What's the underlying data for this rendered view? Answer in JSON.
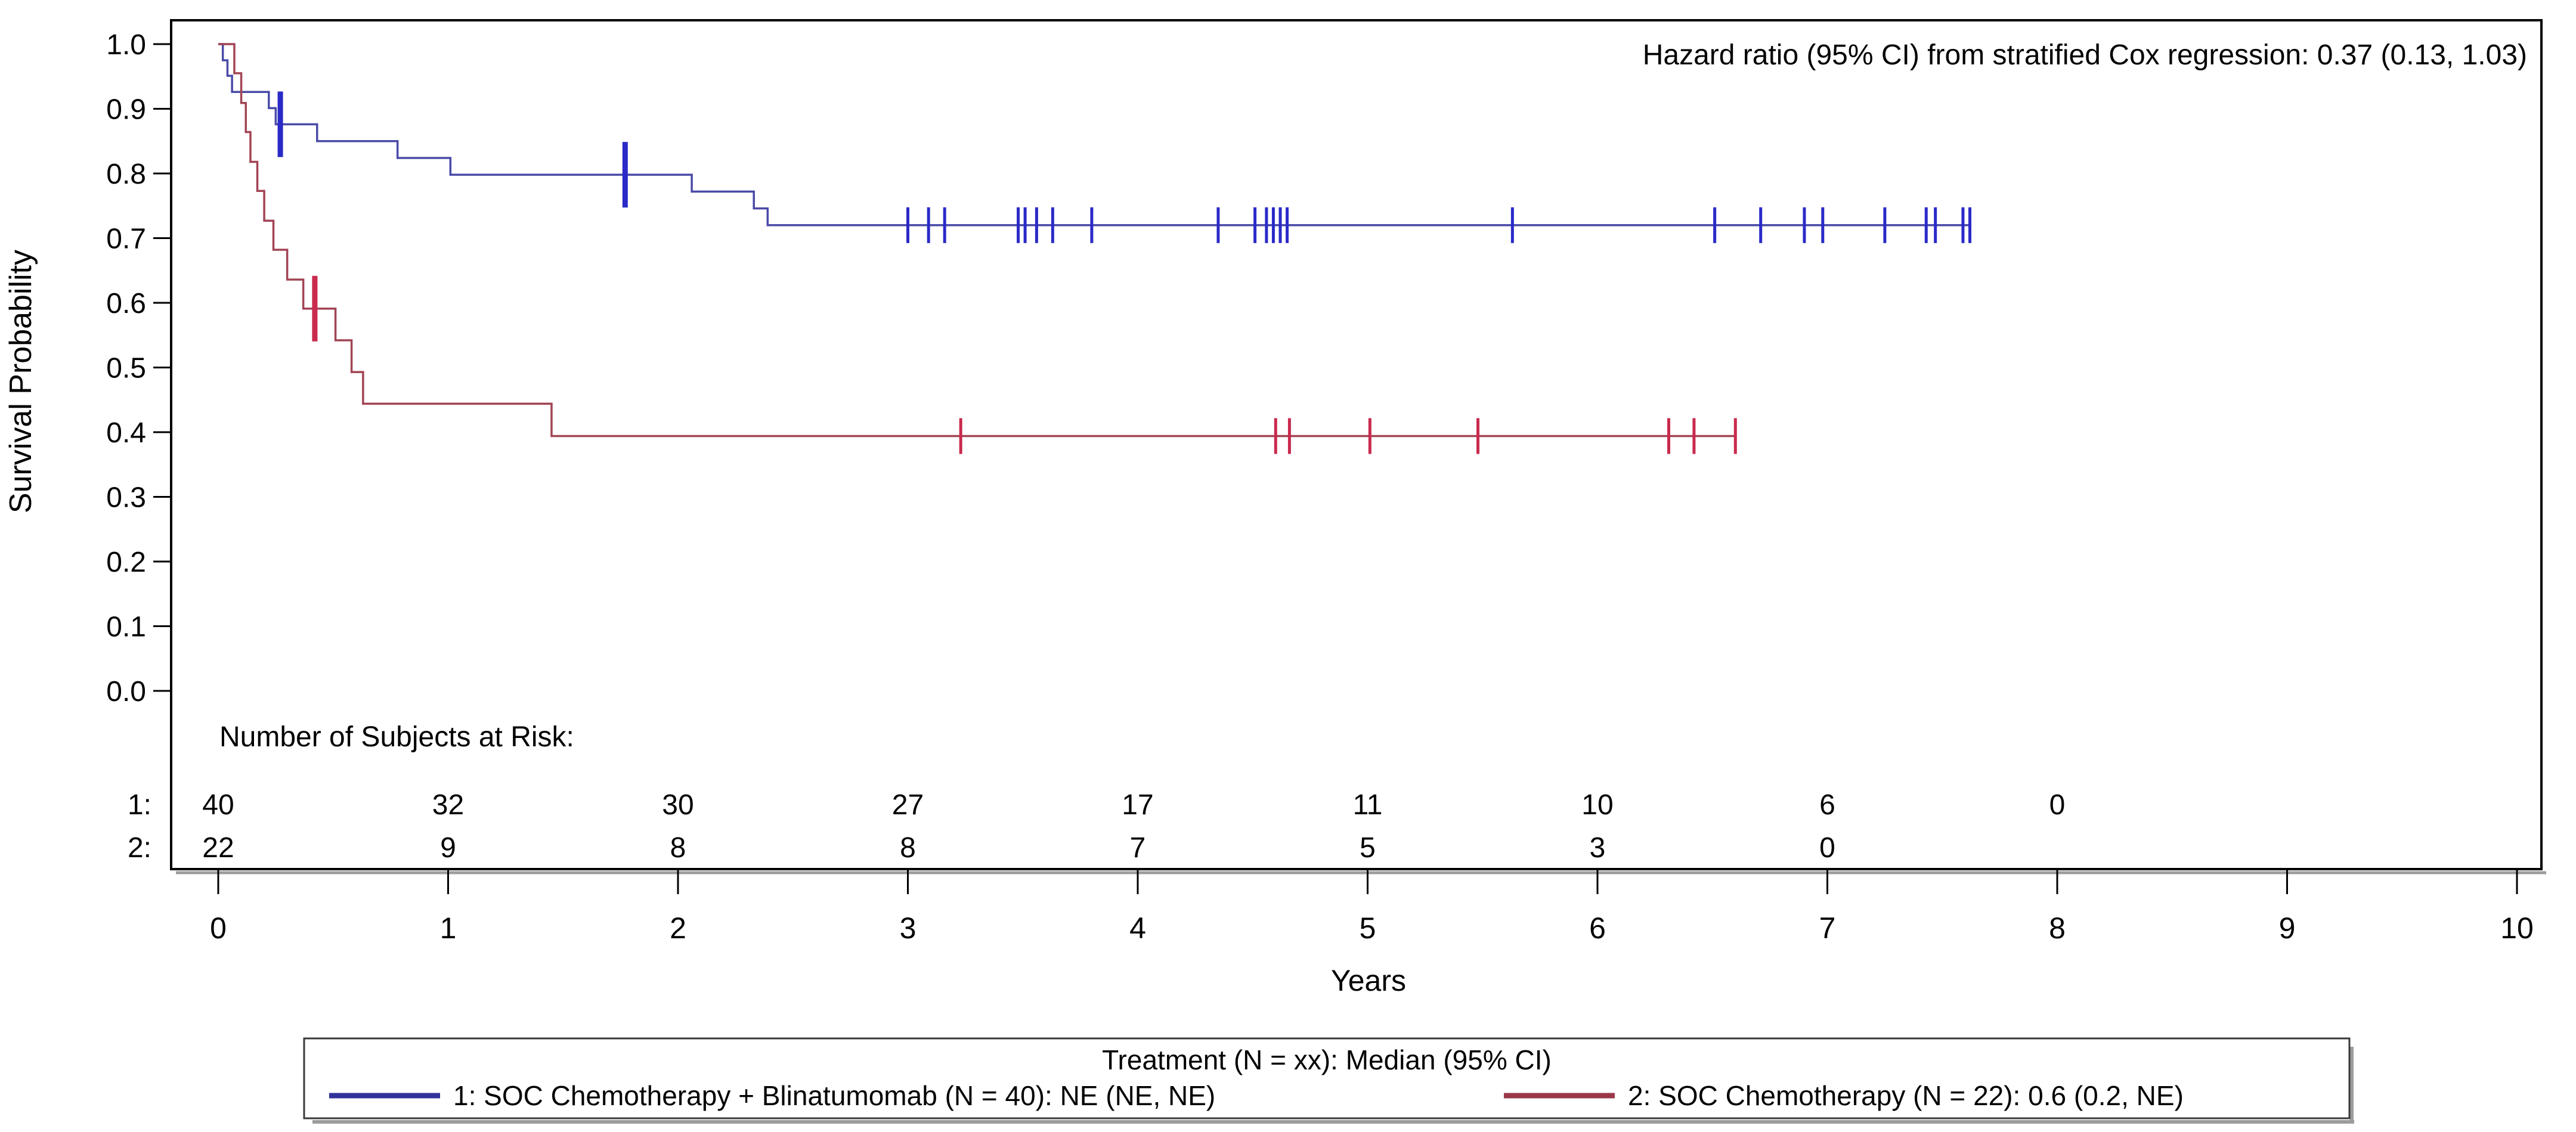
{
  "annotation": {
    "hazard_note": "Hazard ratio (95% CI) from stratified Cox regression: 0.37 (0.13, 1.03)"
  },
  "axes": {
    "y_label": "Survival Probability",
    "x_label": "Years",
    "y_tick_labels": [
      "1.0",
      "0.9",
      "0.8",
      "0.7",
      "0.6",
      "0.5",
      "0.4",
      "0.3",
      "0.2",
      "0.1",
      "0.0"
    ],
    "x_tick_labels": [
      "0",
      "1",
      "2",
      "3",
      "4",
      "5",
      "6",
      "7",
      "8",
      "9",
      "10"
    ]
  },
  "risk_table": {
    "header": "Number of Subjects at Risk:",
    "rows": [
      {
        "label": "1:",
        "color": "#2626d2",
        "counts": [
          "40",
          "32",
          "30",
          "27",
          "17",
          "11",
          "10",
          "6",
          "0"
        ]
      },
      {
        "label": "2:",
        "color": "#c1202f",
        "counts": [
          "22",
          "9",
          "8",
          "8",
          "7",
          "5",
          "3",
          "0"
        ]
      }
    ]
  },
  "legend": {
    "title": "Treatment (N = xx): Median (95% CI)",
    "entries": [
      {
        "label": "1: SOC Chemotherapy + Blinatumomab (N = 40): NE (NE, NE)",
        "color": "#32329b"
      },
      {
        "label": "2: SOC Chemotherapy (N = 22): 0.6 (0.2, NE)",
        "color": "#9a3848"
      }
    ]
  },
  "chart_data": {
    "type": "line",
    "subtype": "kaplan-meier-step",
    "title": "",
    "xlabel": "Years",
    "ylabel": "Survival Probability",
    "xlim": [
      0,
      10
    ],
    "ylim": [
      0.0,
      1.0
    ],
    "grid": false,
    "legend_position": "bottom",
    "annotation": "Hazard ratio (95% CI) from stratified Cox regression: 0.37 (0.13, 1.03)",
    "series": [
      {
        "name": "1: SOC Chemotherapy + Blinatumomab (N = 40)",
        "median_95ci": "NE (NE, NE)",
        "color": "#4a4aa8",
        "censor_color": "#2a2ac8",
        "steps": [
          [
            0,
            1.0
          ],
          [
            0.02,
            0.975
          ],
          [
            0.04,
            0.951
          ],
          [
            0.06,
            0.926
          ],
          [
            0.22,
            0.901
          ],
          [
            0.25,
            0.876
          ],
          [
            0.43,
            0.85
          ],
          [
            0.78,
            0.824
          ],
          [
            1.01,
            0.798
          ],
          [
            2.06,
            0.772
          ],
          [
            2.33,
            0.746
          ],
          [
            2.39,
            0.72
          ]
        ],
        "end_time": 7.62,
        "censor_times": [
          3.0,
          3.09,
          3.16,
          3.48,
          3.51,
          3.56,
          3.63,
          3.8,
          4.35,
          4.51,
          4.56,
          4.59,
          4.62,
          4.65,
          5.63,
          6.51,
          6.71,
          6.9,
          6.98,
          7.25,
          7.43,
          7.47,
          7.59,
          7.62
        ],
        "big_censor_times": [
          0.27,
          1.77
        ],
        "at_risk_by_year": [
          40,
          32,
          30,
          27,
          17,
          11,
          10,
          6,
          0
        ]
      },
      {
        "name": "2: SOC Chemotherapy (N = 22)",
        "median_95ci": "0.6 (0.2, NE)",
        "color": "#a24454",
        "censor_color": "#c92a4d",
        "steps": [
          [
            0,
            1.0
          ],
          [
            0.07,
            0.955
          ],
          [
            0.1,
            0.909
          ],
          [
            0.12,
            0.864
          ],
          [
            0.14,
            0.818
          ],
          [
            0.17,
            0.773
          ],
          [
            0.2,
            0.727
          ],
          [
            0.24,
            0.682
          ],
          [
            0.3,
            0.636
          ],
          [
            0.37,
            0.591
          ],
          [
            0.51,
            0.542
          ],
          [
            0.58,
            0.493
          ],
          [
            0.63,
            0.444
          ],
          [
            1.45,
            0.394
          ]
        ],
        "end_time": 6.6,
        "censor_times": [
          3.23,
          4.6,
          4.66,
          5.01,
          5.48,
          6.31,
          6.42,
          6.6
        ],
        "big_censor_times": [
          0.42
        ],
        "at_risk_by_year": [
          22,
          9,
          8,
          8,
          7,
          5,
          3,
          0
        ]
      }
    ]
  }
}
